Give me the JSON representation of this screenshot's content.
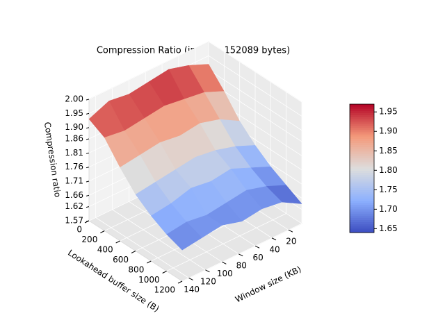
{
  "chart_data": {
    "type": "surface",
    "title": "Compression Ratio (input = 152089 bytes)",
    "x_label": "Window size (KB)",
    "y_label": "Lookahead buffer size (B)",
    "z_label": "Compression ratio",
    "x": [
      4,
      28,
      52,
      76,
      100,
      124,
      148
    ],
    "y": [
      0,
      200,
      400,
      600,
      800,
      1000,
      1200
    ],
    "z": [
      [
        1.92,
        1.95,
        1.97,
        1.96,
        1.95,
        1.96,
        1.93
      ],
      [
        1.86,
        1.89,
        1.9,
        1.91,
        1.9,
        1.89,
        1.9
      ],
      [
        1.79,
        1.83,
        1.85,
        1.84,
        1.85,
        1.84,
        1.83
      ],
      [
        1.74,
        1.77,
        1.79,
        1.8,
        1.79,
        1.78,
        1.77
      ],
      [
        1.7,
        1.73,
        1.76,
        1.75,
        1.76,
        1.74,
        1.73
      ],
      [
        1.67,
        1.7,
        1.72,
        1.71,
        1.7,
        1.71,
        1.7
      ],
      [
        1.64,
        1.68,
        1.69,
        1.68,
        1.7,
        1.69,
        1.68
      ]
    ],
    "xlim": [
      4,
      148
    ],
    "xticks": [
      20,
      40,
      60,
      80,
      100,
      120,
      140
    ],
    "ylim": [
      0,
      1200
    ],
    "yticks": [
      0,
      200,
      400,
      600,
      800,
      1000,
      1200
    ],
    "zlim": [
      1.57,
      2.0
    ],
    "zticks": [
      1.57,
      1.62,
      1.66,
      1.71,
      1.76,
      1.81,
      1.86,
      {
        "value": 1.9,
        "label": "1.90"
      },
      1.95,
      {
        "value": 2.0,
        "label": "2.00"
      }
    ],
    "colormap": "coolwarm",
    "clim": [
      1.64,
      1.97
    ],
    "colorbar_ticks": [
      1.65,
      {
        "value": 1.7,
        "label": "1.70"
      },
      1.75,
      {
        "value": 1.8,
        "label": "1.80"
      },
      1.85,
      {
        "value": 1.9,
        "label": "1.90"
      },
      1.95
    ],
    "grid": true
  }
}
